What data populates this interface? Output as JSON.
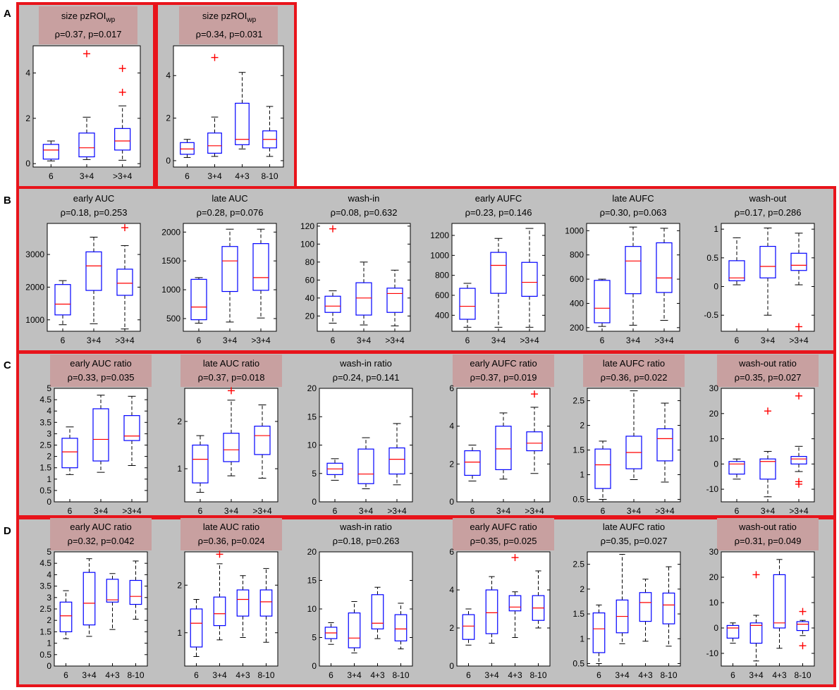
{
  "sections": [
    {
      "letter": "A"
    },
    {
      "letter": "B"
    },
    {
      "letter": "C"
    },
    {
      "letter": "D"
    }
  ],
  "colors": {
    "panel_bg": "#c0c0c0",
    "section_border": "#e8141b",
    "box": "#0000ff",
    "median": "#ff0000",
    "outlier": "#ff0000",
    "whisker": "#000000",
    "highlight": "#c8a0a0"
  },
  "chart_data": [
    {
      "id": "A1",
      "type": "box",
      "title": "size pzROI",
      "title_sub": "wp",
      "stats": "ρ=0.37, p=0.017",
      "highlight": true,
      "categories": [
        "6",
        "3+4",
        ">3+4"
      ],
      "ylim": [
        -0.15,
        5.2
      ],
      "yticks": [
        0,
        2,
        4
      ],
      "boxes": [
        {
          "wlo": 0.12,
          "q1": 0.2,
          "med": 0.6,
          "q3": 0.85,
          "whi": 1.0,
          "out": []
        },
        {
          "wlo": 0.18,
          "q1": 0.3,
          "med": 0.7,
          "q3": 1.35,
          "whi": 2.05,
          "out": [
            4.85
          ]
        },
        {
          "wlo": 0.15,
          "q1": 0.6,
          "med": 1.0,
          "q3": 1.55,
          "whi": 2.55,
          "out": [
            3.15,
            4.2
          ]
        }
      ]
    },
    {
      "id": "A2",
      "type": "box",
      "title": "size pzROI",
      "title_sub": "wp",
      "stats": "ρ=0.34, p=0.031",
      "highlight": true,
      "categories": [
        "6",
        "3+4",
        "4+3",
        "8-10"
      ],
      "ylim": [
        -0.3,
        5.4
      ],
      "yticks": [
        0,
        2,
        4
      ],
      "boxes": [
        {
          "wlo": 0.15,
          "q1": 0.3,
          "med": 0.55,
          "q3": 0.85,
          "whi": 1.0,
          "out": []
        },
        {
          "wlo": 0.2,
          "q1": 0.35,
          "med": 0.7,
          "q3": 1.3,
          "whi": 2.05,
          "out": [
            4.85
          ]
        },
        {
          "wlo": 0.55,
          "q1": 0.75,
          "med": 1.0,
          "q3": 2.7,
          "whi": 4.15,
          "out": []
        },
        {
          "wlo": 0.2,
          "q1": 0.6,
          "med": 1.0,
          "q3": 1.4,
          "whi": 2.55,
          "out": []
        }
      ]
    },
    {
      "id": "B1",
      "type": "box",
      "title": "early AUC",
      "stats": "ρ=0.18, p=0.253",
      "highlight": false,
      "categories": [
        "6",
        "3+4",
        ">3+4"
      ],
      "ylim": [
        650,
        3950
      ],
      "yticks": [
        1000,
        2000,
        3000
      ],
      "boxes": [
        {
          "wlo": 850,
          "q1": 1150,
          "med": 1480,
          "q3": 2080,
          "whi": 2200,
          "out": []
        },
        {
          "wlo": 880,
          "q1": 1900,
          "med": 2650,
          "q3": 3080,
          "whi": 3530,
          "out": []
        },
        {
          "wlo": 720,
          "q1": 1750,
          "med": 2120,
          "q3": 2550,
          "whi": 3270,
          "out": [
            3820
          ]
        }
      ]
    },
    {
      "id": "B2",
      "type": "box",
      "title": "late AUC",
      "stats": "ρ=0.28, p=0.076",
      "highlight": false,
      "categories": [
        "6",
        "3+4",
        ">3+4"
      ],
      "ylim": [
        280,
        2150
      ],
      "yticks": [
        500,
        1000,
        1500,
        2000
      ],
      "boxes": [
        {
          "wlo": 420,
          "q1": 480,
          "med": 700,
          "q3": 1180,
          "whi": 1210,
          "out": []
        },
        {
          "wlo": 440,
          "q1": 970,
          "med": 1500,
          "q3": 1750,
          "whi": 2050,
          "out": []
        },
        {
          "wlo": 510,
          "q1": 990,
          "med": 1210,
          "q3": 1800,
          "whi": 2050,
          "out": []
        }
      ]
    },
    {
      "id": "B3",
      "type": "box",
      "title": "wash-in",
      "stats": "ρ=0.08, p=0.632",
      "highlight": false,
      "categories": [
        "6",
        "3+4",
        ">3+4"
      ],
      "ylim": [
        3,
        123
      ],
      "yticks": [
        20,
        40,
        60,
        80,
        100,
        120
      ],
      "boxes": [
        {
          "wlo": 12,
          "q1": 24,
          "med": 31,
          "q3": 42,
          "whi": 48,
          "out": [
            117
          ]
        },
        {
          "wlo": 10,
          "q1": 21,
          "med": 40,
          "q3": 57,
          "whi": 80,
          "out": []
        },
        {
          "wlo": 9,
          "q1": 24,
          "med": 45,
          "q3": 51,
          "whi": 71,
          "out": []
        }
      ]
    },
    {
      "id": "B4",
      "type": "box",
      "title": "early AUFC",
      "stats": "ρ=0.23, p=0.146",
      "highlight": false,
      "categories": [
        "6",
        "3+4",
        ">3+4"
      ],
      "ylim": [
        240,
        1320
      ],
      "yticks": [
        400,
        600,
        800,
        1000,
        1200
      ],
      "boxes": [
        {
          "wlo": 280,
          "q1": 360,
          "med": 490,
          "q3": 670,
          "whi": 720,
          "out": []
        },
        {
          "wlo": 280,
          "q1": 620,
          "med": 900,
          "q3": 1030,
          "whi": 1170,
          "out": []
        },
        {
          "wlo": 280,
          "q1": 590,
          "med": 730,
          "q3": 930,
          "whi": 1270,
          "out": []
        }
      ]
    },
    {
      "id": "B5",
      "type": "box",
      "title": "late AUFC",
      "stats": "ρ=0.30, p=0.063",
      "highlight": false,
      "categories": [
        "6",
        "3+4",
        ">3+4"
      ],
      "ylim": [
        170,
        1060
      ],
      "yticks": [
        200,
        400,
        600,
        800,
        1000
      ],
      "boxes": [
        {
          "wlo": 210,
          "q1": 240,
          "med": 360,
          "q3": 590,
          "whi": 600,
          "out": []
        },
        {
          "wlo": 220,
          "q1": 480,
          "med": 750,
          "q3": 870,
          "whi": 1030,
          "out": []
        },
        {
          "wlo": 260,
          "q1": 490,
          "med": 610,
          "q3": 900,
          "whi": 1020,
          "out": []
        }
      ]
    },
    {
      "id": "B6",
      "type": "box",
      "title": "wash-out",
      "stats": "ρ=0.17, p=0.286",
      "highlight": false,
      "categories": [
        "6",
        "3+4",
        ">3+4"
      ],
      "ylim": [
        -0.78,
        1.1
      ],
      "yticks": [
        -0.5,
        0,
        0.5,
        1
      ],
      "boxes": [
        {
          "wlo": 0.03,
          "q1": 0.1,
          "med": 0.15,
          "q3": 0.45,
          "whi": 0.85,
          "out": []
        },
        {
          "wlo": -0.5,
          "q1": 0.15,
          "med": 0.35,
          "q3": 0.7,
          "whi": 1.02,
          "out": []
        },
        {
          "wlo": 0.03,
          "q1": 0.28,
          "med": 0.37,
          "q3": 0.58,
          "whi": 0.93,
          "out": [
            -0.7
          ]
        }
      ]
    },
    {
      "id": "C1",
      "type": "box",
      "title": "early AUC ratio",
      "stats": "ρ=0.33, p=0.035",
      "highlight": true,
      "categories": [
        "6",
        "3+4",
        ">3+4"
      ],
      "ylim": [
        0,
        5
      ],
      "yticks": [
        0,
        0.5,
        1,
        1.5,
        2,
        2.5,
        3,
        3.5,
        4,
        4.5,
        5
      ],
      "boxes": [
        {
          "wlo": 1.2,
          "q1": 1.5,
          "med": 2.2,
          "q3": 2.8,
          "whi": 3.3,
          "out": []
        },
        {
          "wlo": 1.3,
          "q1": 1.8,
          "med": 2.75,
          "q3": 4.1,
          "whi": 4.7,
          "out": []
        },
        {
          "wlo": 1.6,
          "q1": 2.7,
          "med": 2.9,
          "q3": 3.8,
          "whi": 4.65,
          "out": []
        }
      ]
    },
    {
      "id": "C2",
      "type": "box",
      "title": "late AUC ratio",
      "stats": "ρ=0.37, p=0.018",
      "highlight": true,
      "categories": [
        "6",
        "3+4",
        ">3+4"
      ],
      "ylim": [
        0.3,
        2.7
      ],
      "yticks": [
        1,
        2
      ],
      "boxes": [
        {
          "wlo": 0.5,
          "q1": 0.7,
          "med": 1.2,
          "q3": 1.5,
          "whi": 1.7,
          "out": []
        },
        {
          "wlo": 0.85,
          "q1": 1.15,
          "med": 1.4,
          "q3": 1.75,
          "whi": 2.45,
          "out": [
            2.65
          ]
        },
        {
          "wlo": 0.8,
          "q1": 1.3,
          "med": 1.7,
          "q3": 1.9,
          "whi": 2.35,
          "out": []
        }
      ]
    },
    {
      "id": "C3",
      "type": "box",
      "title": "wash-in ratio",
      "stats": "ρ=0.24, p=0.141",
      "highlight": false,
      "categories": [
        "6",
        "3+4",
        ">3+4"
      ],
      "ylim": [
        0,
        20
      ],
      "yticks": [
        0,
        5,
        10,
        15,
        20
      ],
      "boxes": [
        {
          "wlo": 3.8,
          "q1": 4.8,
          "med": 5.8,
          "q3": 6.8,
          "whi": 7.6,
          "out": []
        },
        {
          "wlo": 2.3,
          "q1": 3.2,
          "med": 4.9,
          "q3": 9.3,
          "whi": 11.3,
          "out": []
        },
        {
          "wlo": 3,
          "q1": 4.9,
          "med": 7.5,
          "q3": 9.5,
          "whi": 13.8,
          "out": []
        }
      ]
    },
    {
      "id": "C4",
      "type": "box",
      "title": "early AUFC ratio",
      "stats": "ρ=0.37, p=0.019",
      "highlight": true,
      "categories": [
        "6",
        "3+4",
        ">3+4"
      ],
      "ylim": [
        0,
        6
      ],
      "yticks": [
        0,
        2,
        4,
        6
      ],
      "boxes": [
        {
          "wlo": 1.1,
          "q1": 1.4,
          "med": 2.1,
          "q3": 2.7,
          "whi": 3.0,
          "out": []
        },
        {
          "wlo": 1.2,
          "q1": 1.7,
          "med": 2.8,
          "q3": 4.0,
          "whi": 4.7,
          "out": []
        },
        {
          "wlo": 1.5,
          "q1": 2.7,
          "med": 3.1,
          "q3": 3.7,
          "whi": 5.0,
          "out": [
            5.7
          ]
        }
      ]
    },
    {
      "id": "C5",
      "type": "box",
      "title": "late AUFC ratio",
      "stats": "ρ=0.36, p=0.022",
      "highlight": true,
      "categories": [
        "6",
        "3+4",
        ">3+4"
      ],
      "ylim": [
        0.45,
        2.75
      ],
      "yticks": [
        0.5,
        1,
        1.5,
        2,
        2.5
      ],
      "boxes": [
        {
          "wlo": 0.5,
          "q1": 0.72,
          "med": 1.2,
          "q3": 1.52,
          "whi": 1.68,
          "out": []
        },
        {
          "wlo": 0.9,
          "q1": 1.12,
          "med": 1.45,
          "q3": 1.78,
          "whi": 2.7,
          "out": []
        },
        {
          "wlo": 0.85,
          "q1": 1.28,
          "med": 1.73,
          "q3": 1.93,
          "whi": 2.45,
          "out": []
        }
      ]
    },
    {
      "id": "C6",
      "type": "box",
      "title": "wash-out ratio",
      "stats": "ρ=0.35, p=0.027",
      "highlight": true,
      "categories": [
        "6",
        "3+4",
        ">3+4"
      ],
      "ylim": [
        -15,
        30
      ],
      "yticks": [
        -10,
        0,
        10,
        20,
        30
      ],
      "boxes": [
        {
          "wlo": -6,
          "q1": -4,
          "med": 0,
          "q3": 1,
          "whi": 2,
          "out": []
        },
        {
          "wlo": -13,
          "q1": -6,
          "med": 1,
          "q3": 2,
          "whi": 5,
          "out": [
            21
          ]
        },
        {
          "wlo": -3,
          "q1": 0,
          "med": 2,
          "q3": 3,
          "whi": 7,
          "out": [
            -7,
            -8,
            27
          ]
        }
      ]
    },
    {
      "id": "D1",
      "type": "box",
      "title": "early AUC ratio",
      "stats": "ρ=0.32, p=0.042",
      "highlight": true,
      "categories": [
        "6",
        "3+4",
        "4+3",
        "8-10"
      ],
      "ylim": [
        0,
        5
      ],
      "yticks": [
        0,
        0.5,
        1,
        1.5,
        2,
        2.5,
        3,
        3.5,
        4,
        4.5,
        5
      ],
      "boxes": [
        {
          "wlo": 1.2,
          "q1": 1.5,
          "med": 2.2,
          "q3": 2.8,
          "whi": 3.3,
          "out": []
        },
        {
          "wlo": 1.3,
          "q1": 1.8,
          "med": 2.75,
          "q3": 4.1,
          "whi": 4.7,
          "out": []
        },
        {
          "wlo": 1.6,
          "q1": 2.8,
          "med": 2.9,
          "q3": 3.8,
          "whi": 4.05,
          "out": []
        },
        {
          "wlo": 2.05,
          "q1": 2.7,
          "med": 3.05,
          "q3": 3.75,
          "whi": 4.6,
          "out": []
        }
      ]
    },
    {
      "id": "D2",
      "type": "box",
      "title": "late AUC ratio",
      "stats": "ρ=0.36, p=0.024",
      "highlight": true,
      "categories": [
        "6",
        "3+4",
        "4+3",
        "8-10"
      ],
      "ylim": [
        0.3,
        2.7
      ],
      "yticks": [
        1,
        2
      ],
      "boxes": [
        {
          "wlo": 0.5,
          "q1": 0.7,
          "med": 1.2,
          "q3": 1.5,
          "whi": 1.7,
          "out": []
        },
        {
          "wlo": 0.85,
          "q1": 1.15,
          "med": 1.4,
          "q3": 1.75,
          "whi": 2.45,
          "out": [
            2.65
          ]
        },
        {
          "wlo": 0.9,
          "q1": 1.35,
          "med": 1.7,
          "q3": 1.9,
          "whi": 2.2,
          "out": []
        },
        {
          "wlo": 0.8,
          "q1": 1.35,
          "med": 1.65,
          "q3": 1.9,
          "whi": 2.35,
          "out": []
        }
      ]
    },
    {
      "id": "D3",
      "type": "box",
      "title": "wash-in ratio",
      "stats": "ρ=0.18, p=0.263",
      "highlight": false,
      "categories": [
        "6",
        "3+4",
        "4+3",
        "8-10"
      ],
      "ylim": [
        0,
        20
      ],
      "yticks": [
        0,
        5,
        10,
        15,
        20
      ],
      "boxes": [
        {
          "wlo": 3.8,
          "q1": 4.8,
          "med": 5.8,
          "q3": 6.8,
          "whi": 7.6,
          "out": []
        },
        {
          "wlo": 2.3,
          "q1": 3.2,
          "med": 4.9,
          "q3": 9.3,
          "whi": 11.3,
          "out": []
        },
        {
          "wlo": 4.8,
          "q1": 6.5,
          "med": 7.5,
          "q3": 12.5,
          "whi": 13.8,
          "out": []
        },
        {
          "wlo": 3,
          "q1": 4.4,
          "med": 6.5,
          "q3": 9,
          "whi": 11,
          "out": []
        }
      ]
    },
    {
      "id": "D4",
      "type": "box",
      "title": "early AUFC ratio",
      "stats": "ρ=0.35, p=0.025",
      "highlight": true,
      "categories": [
        "6",
        "3+4",
        "4+3",
        "8-10"
      ],
      "ylim": [
        0,
        6
      ],
      "yticks": [
        0,
        2,
        4,
        6
      ],
      "boxes": [
        {
          "wlo": 1.1,
          "q1": 1.4,
          "med": 2.1,
          "q3": 2.7,
          "whi": 3.0,
          "out": []
        },
        {
          "wlo": 1.2,
          "q1": 1.7,
          "med": 2.8,
          "q3": 4.0,
          "whi": 4.7,
          "out": []
        },
        {
          "wlo": 1.5,
          "q1": 2.9,
          "med": 3.1,
          "q3": 3.7,
          "whi": 3.9,
          "out": [
            5.7
          ]
        },
        {
          "wlo": 2.0,
          "q1": 2.4,
          "med": 3.05,
          "q3": 3.7,
          "whi": 5.0,
          "out": []
        }
      ]
    },
    {
      "id": "D5",
      "type": "box",
      "title": "late AUFC ratio",
      "stats": "ρ=0.35, p=0.027",
      "highlight": false,
      "categories": [
        "6",
        "3+4",
        "4+3",
        "8-10"
      ],
      "ylim": [
        0.45,
        2.75
      ],
      "yticks": [
        0.5,
        1,
        1.5,
        2,
        2.5
      ],
      "boxes": [
        {
          "wlo": 0.5,
          "q1": 0.72,
          "med": 1.2,
          "q3": 1.52,
          "whi": 1.68,
          "out": []
        },
        {
          "wlo": 0.9,
          "q1": 1.12,
          "med": 1.45,
          "q3": 1.78,
          "whi": 2.7,
          "out": []
        },
        {
          "wlo": 0.95,
          "q1": 1.35,
          "med": 1.73,
          "q3": 1.93,
          "whi": 2.2,
          "out": []
        },
        {
          "wlo": 0.85,
          "q1": 1.3,
          "med": 1.68,
          "q3": 1.92,
          "whi": 2.45,
          "out": []
        }
      ]
    },
    {
      "id": "D6",
      "type": "box",
      "title": "wash-out ratio",
      "stats": "ρ=0.31, p=0.049",
      "highlight": true,
      "categories": [
        "6",
        "3+4",
        "4+3",
        "8-10"
      ],
      "ylim": [
        -15,
        30
      ],
      "yticks": [
        -10,
        0,
        10,
        20,
        30
      ],
      "boxes": [
        {
          "wlo": -6,
          "q1": -4,
          "med": 0,
          "q3": 1,
          "whi": 2,
          "out": []
        },
        {
          "wlo": -13,
          "q1": -6,
          "med": 1,
          "q3": 2,
          "whi": 5,
          "out": [
            21
          ]
        },
        {
          "wlo": -8,
          "q1": 0,
          "med": 2,
          "q3": 21,
          "whi": 27,
          "out": []
        },
        {
          "wlo": -3,
          "q1": -1,
          "med": 1.5,
          "q3": 2.5,
          "whi": 3,
          "out": [
            -7,
            6.5
          ]
        }
      ]
    }
  ]
}
